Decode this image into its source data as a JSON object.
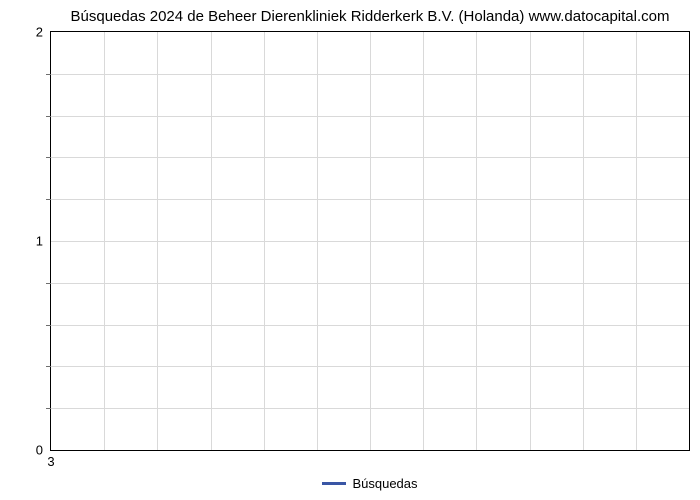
{
  "chart": {
    "type": "line",
    "title": "Búsquedas 2024 de Beheer Dierenkliniek Ridderkerk B.V. (Holanda) www.datocapital.com",
    "title_fontsize": 15,
    "title_color": "#000000",
    "background_color": "#ffffff",
    "plot_border_color": "#000000",
    "grid_color": "#d9d9d9",
    "x": {
      "ticks": [
        3
      ],
      "limits": [
        3,
        3
      ],
      "grid_lines": 12
    },
    "y": {
      "major_ticks": [
        0,
        1,
        2
      ],
      "minor_tick_count_between": 4,
      "limits": [
        0,
        2
      ],
      "minor_tick_color": "#6e6e6e"
    },
    "series": [
      {
        "name": "Búsquedas",
        "color": "#3a56a5",
        "line_width": 3,
        "values": []
      }
    ],
    "legend": {
      "position": "bottom-center",
      "fontsize": 13,
      "text_color": "#000000"
    },
    "tick_fontsize": 13,
    "tick_color": "#000000"
  }
}
